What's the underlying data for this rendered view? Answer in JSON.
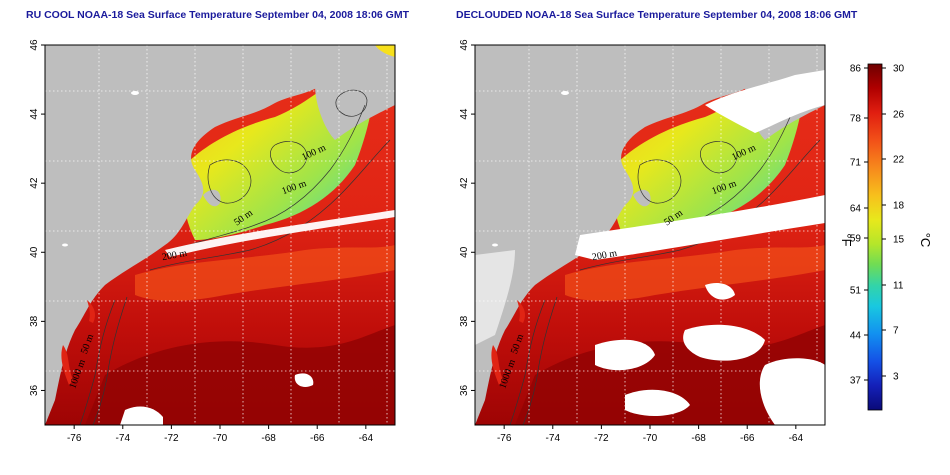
{
  "panels": [
    {
      "id": "left",
      "title": "RU COOL NOAA-18 Sea Surface Temperature September 04, 2008 18:06 GMT",
      "declouded": false
    },
    {
      "id": "right",
      "title": "DECLOUDED NOAA-18 Sea Surface Temperature September 04, 2008 18:06 GMT",
      "declouded": true
    }
  ],
  "axes": {
    "lon_ticks": [
      "-76",
      "-74",
      "-72",
      "-70",
      "-68",
      "-66",
      "-64"
    ],
    "lat_ticks": [
      "36",
      "38",
      "40",
      "42",
      "44",
      "46"
    ],
    "lon_range": [
      -77.2,
      -62.8
    ],
    "lat_range": [
      35,
      46
    ],
    "grid": "dotted"
  },
  "isobaths": [
    "100 m",
    "100 m",
    "50 m",
    "200 m",
    "50 m",
    "1000 m"
  ],
  "colorbar": {
    "fahrenheit_ticks": [
      "86",
      "78",
      "71",
      "64",
      "59",
      "51",
      "44",
      "37"
    ],
    "celsius_ticks": [
      "30",
      "26",
      "22",
      "18",
      "15",
      "11",
      "7",
      "3"
    ],
    "fahrenheit_label": "°F",
    "celsius_label": "°C",
    "colors": [
      "#6e0000",
      "#b00000",
      "#e01e10",
      "#f25018",
      "#f7891c",
      "#f7c01c",
      "#e8e81c",
      "#b5e62a",
      "#6fdc55",
      "#33d4a8",
      "#19c8e0",
      "#1290f0",
      "#1450e6",
      "#1420b8",
      "#0a0a78"
    ]
  },
  "colors": {
    "land": "#bebebe",
    "cloud": "#ffffff",
    "title": "#1a1a9c"
  }
}
